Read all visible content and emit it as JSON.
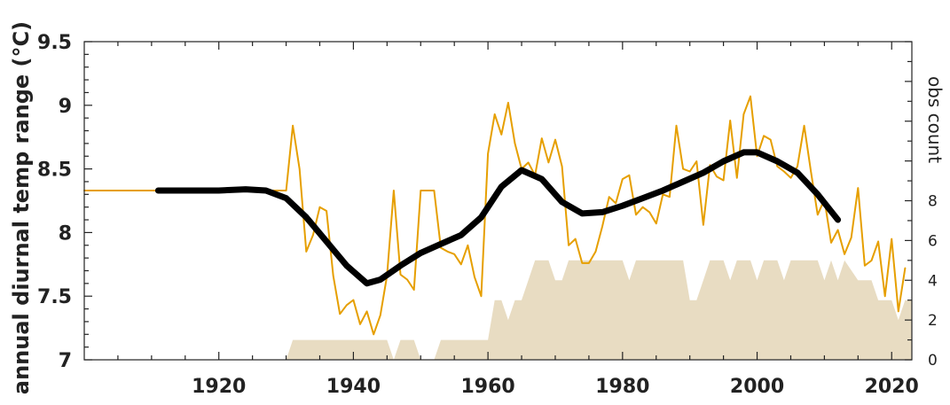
{
  "chart_data": {
    "type": "line",
    "title": "",
    "xlabel": "",
    "ylabel": "annual diurnal temp range (°C)",
    "y2label": "obs count",
    "xlim": [
      1900,
      2023
    ],
    "ylim": [
      7,
      9.5
    ],
    "y2lim": [
      0,
      16
    ],
    "x_ticks": [
      1920,
      1940,
      1960,
      1980,
      2000,
      2020
    ],
    "y_ticks": [
      "7",
      "7.5",
      "8",
      "8.5",
      "9",
      "9.5"
    ],
    "y2_ticks": [
      "0",
      "2",
      "4",
      "6",
      "8"
    ],
    "grid": false,
    "colors": {
      "annual": "#E69F00",
      "smooth": "#000000",
      "count": "#E8DCC2"
    },
    "series": [
      {
        "kind": "line",
        "color": "#E69F00",
        "points": [
          [
            1900,
            8.33
          ],
          [
            1930,
            8.33
          ],
          [
            1931,
            8.84
          ],
          [
            1932,
            8.5
          ],
          [
            1933,
            7.85
          ],
          [
            1934,
            7.98
          ],
          [
            1935,
            8.2
          ],
          [
            1936,
            8.17
          ],
          [
            1937,
            7.66
          ],
          [
            1938,
            7.36
          ],
          [
            1939,
            7.43
          ],
          [
            1940,
            7.47
          ],
          [
            1941,
            7.28
          ],
          [
            1942,
            7.38
          ],
          [
            1943,
            7.2
          ],
          [
            1944,
            7.35
          ],
          [
            1945,
            7.66
          ],
          [
            1946,
            8.33
          ],
          [
            1947,
            7.67
          ],
          [
            1948,
            7.63
          ],
          [
            1949,
            7.55
          ],
          [
            1950,
            8.33
          ],
          [
            1951,
            8.33
          ],
          [
            1952,
            8.33
          ],
          [
            1953,
            7.88
          ],
          [
            1954,
            7.85
          ],
          [
            1955,
            7.83
          ],
          [
            1956,
            7.75
          ],
          [
            1957,
            7.9
          ],
          [
            1958,
            7.65
          ],
          [
            1959,
            7.5
          ],
          [
            1960,
            8.62
          ],
          [
            1961,
            8.93
          ],
          [
            1962,
            8.77
          ],
          [
            1963,
            9.02
          ],
          [
            1964,
            8.7
          ],
          [
            1965,
            8.5
          ],
          [
            1966,
            8.55
          ],
          [
            1967,
            8.45
          ],
          [
            1968,
            8.74
          ],
          [
            1969,
            8.55
          ],
          [
            1970,
            8.73
          ],
          [
            1971,
            8.52
          ],
          [
            1972,
            7.9
          ],
          [
            1973,
            7.95
          ],
          [
            1974,
            7.76
          ],
          [
            1975,
            7.76
          ],
          [
            1976,
            7.85
          ],
          [
            1977,
            8.05
          ],
          [
            1978,
            8.28
          ],
          [
            1979,
            8.23
          ],
          [
            1980,
            8.42
          ],
          [
            1981,
            8.45
          ],
          [
            1982,
            8.14
          ],
          [
            1983,
            8.2
          ],
          [
            1984,
            8.16
          ],
          [
            1985,
            8.07
          ],
          [
            1986,
            8.3
          ],
          [
            1987,
            8.28
          ],
          [
            1988,
            8.84
          ],
          [
            1989,
            8.5
          ],
          [
            1990,
            8.48
          ],
          [
            1991,
            8.56
          ],
          [
            1992,
            8.06
          ],
          [
            1993,
            8.53
          ],
          [
            1994,
            8.44
          ],
          [
            1995,
            8.41
          ],
          [
            1996,
            8.88
          ],
          [
            1997,
            8.43
          ],
          [
            1998,
            8.93
          ],
          [
            1999,
            9.07
          ],
          [
            2000,
            8.6
          ],
          [
            2001,
            8.76
          ],
          [
            2002,
            8.73
          ],
          [
            2003,
            8.52
          ],
          [
            2004,
            8.48
          ],
          [
            2005,
            8.43
          ],
          [
            2006,
            8.52
          ],
          [
            2007,
            8.84
          ],
          [
            2008,
            8.48
          ],
          [
            2009,
            8.14
          ],
          [
            2010,
            8.26
          ],
          [
            2011,
            7.92
          ],
          [
            2012,
            8.02
          ],
          [
            2013,
            7.83
          ],
          [
            2014,
            7.96
          ],
          [
            2015,
            8.35
          ],
          [
            2016,
            7.74
          ],
          [
            2017,
            7.78
          ],
          [
            2018,
            7.93
          ],
          [
            2019,
            7.5
          ],
          [
            2020,
            7.95
          ],
          [
            2021,
            7.38
          ],
          [
            2022,
            7.72
          ]
        ]
      },
      {
        "kind": "smooth",
        "color": "#000000",
        "points": [
          [
            1911,
            8.33
          ],
          [
            1916,
            8.33
          ],
          [
            1920,
            8.33
          ],
          [
            1924,
            8.34
          ],
          [
            1927,
            8.33
          ],
          [
            1930,
            8.27
          ],
          [
            1933,
            8.12
          ],
          [
            1936,
            7.93
          ],
          [
            1939,
            7.74
          ],
          [
            1942,
            7.6
          ],
          [
            1944,
            7.63
          ],
          [
            1947,
            7.74
          ],
          [
            1950,
            7.84
          ],
          [
            1953,
            7.91
          ],
          [
            1956,
            7.98
          ],
          [
            1959,
            8.12
          ],
          [
            1962,
            8.36
          ],
          [
            1965,
            8.49
          ],
          [
            1968,
            8.42
          ],
          [
            1971,
            8.24
          ],
          [
            1974,
            8.15
          ],
          [
            1977,
            8.16
          ],
          [
            1980,
            8.21
          ],
          [
            1983,
            8.27
          ],
          [
            1986,
            8.33
          ],
          [
            1989,
            8.4
          ],
          [
            1992,
            8.47
          ],
          [
            1995,
            8.56
          ],
          [
            1998,
            8.63
          ],
          [
            2000,
            8.63
          ],
          [
            2003,
            8.56
          ],
          [
            2006,
            8.47
          ],
          [
            2009,
            8.3
          ],
          [
            2012,
            8.1
          ]
        ]
      }
    ],
    "obs_count": [
      [
        1930,
        0
      ],
      [
        1931,
        1
      ],
      [
        1945,
        1
      ],
      [
        1946,
        0
      ],
      [
        1947,
        1
      ],
      [
        1949,
        1
      ],
      [
        1950,
        0
      ],
      [
        1952,
        0
      ],
      [
        1953,
        1
      ],
      [
        1960,
        1
      ],
      [
        1961,
        3
      ],
      [
        1962,
        3
      ],
      [
        1963,
        2
      ],
      [
        1964,
        3
      ],
      [
        1965,
        3
      ],
      [
        1966,
        4
      ],
      [
        1967,
        5
      ],
      [
        1968,
        5
      ],
      [
        1969,
        5
      ],
      [
        1970,
        4
      ],
      [
        1971,
        4
      ],
      [
        1972,
        5
      ],
      [
        1980,
        5
      ],
      [
        1981,
        4
      ],
      [
        1982,
        5
      ],
      [
        1989,
        5
      ],
      [
        1990,
        3
      ],
      [
        1991,
        3
      ],
      [
        1992,
        4
      ],
      [
        1993,
        5
      ],
      [
        1995,
        5
      ],
      [
        1996,
        4
      ],
      [
        1997,
        5
      ],
      [
        1999,
        5
      ],
      [
        2000,
        4
      ],
      [
        2001,
        5
      ],
      [
        2003,
        5
      ],
      [
        2004,
        4
      ],
      [
        2005,
        5
      ],
      [
        2009,
        5
      ],
      [
        2010,
        4
      ],
      [
        2011,
        5
      ],
      [
        2012,
        4
      ],
      [
        2013,
        5
      ],
      [
        2015,
        4
      ],
      [
        2016,
        4
      ],
      [
        2017,
        4
      ],
      [
        2018,
        3
      ],
      [
        2020,
        3
      ],
      [
        2021,
        2
      ],
      [
        2022,
        3
      ],
      [
        2023,
        3
      ]
    ]
  }
}
